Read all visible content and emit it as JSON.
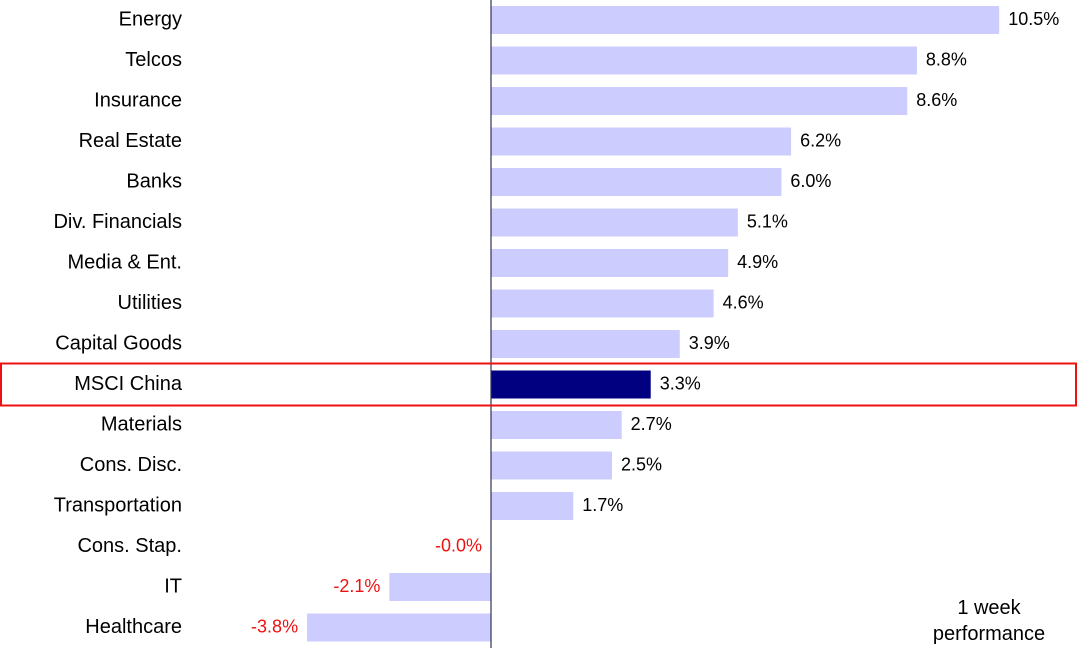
{
  "chart_data": {
    "type": "bar",
    "orientation": "horizontal",
    "categories": [
      "Energy",
      "Telcos",
      "Insurance",
      "Real Estate",
      "Banks",
      "Div. Financials",
      "Media & Ent.",
      "Utilities",
      "Capital Goods",
      "MSCI China",
      "Materials",
      "Cons. Disc.",
      "Transportation",
      "Cons. Stap.",
      "IT",
      "Healthcare"
    ],
    "values": [
      10.5,
      8.8,
      8.6,
      6.2,
      6.0,
      5.1,
      4.9,
      4.6,
      3.9,
      3.3,
      2.7,
      2.5,
      1.7,
      -0.0,
      -2.1,
      -3.8
    ],
    "value_labels": [
      "10.5%",
      "8.8%",
      "8.6%",
      "6.2%",
      "6.0%",
      "5.1%",
      "4.9%",
      "4.6%",
      "3.9%",
      "3.3%",
      "2.7%",
      "2.5%",
      "1.7%",
      "-0.0%",
      "-2.1%",
      "-3.8%"
    ],
    "highlight_category": "MSCI China",
    "xlim": [
      -10.1,
      10.5
    ],
    "grid": false,
    "legend": "none",
    "annotation": [
      "1 week",
      "performance"
    ],
    "colors": {
      "bar": "#ccccff",
      "highlight_bar": "#000080",
      "highlight_box": "#ee1111",
      "axis": "#333355",
      "negative_label": "#ee1111",
      "positive_label": "#000000"
    }
  }
}
